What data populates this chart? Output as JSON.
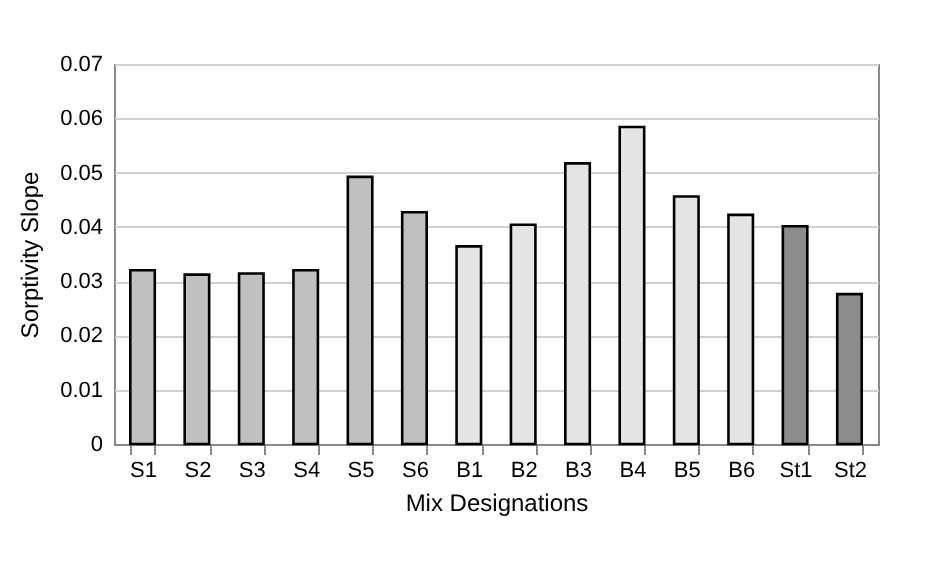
{
  "chart_data": {
    "type": "bar",
    "xlabel": "Mix Designations",
    "ylabel": "Sorptivity Slope",
    "categories": [
      "S1",
      "S2",
      "S3",
      "S4",
      "S5",
      "S6",
      "B1",
      "B2",
      "B3",
      "B4",
      "B5",
      "B6",
      "St1",
      "St2"
    ],
    "values": [
      0.032,
      0.0312,
      0.0314,
      0.032,
      0.0492,
      0.0427,
      0.0364,
      0.0404,
      0.0517,
      0.0584,
      0.0456,
      0.0422,
      0.0401,
      0.0276
    ],
    "colors": [
      "#c0c0c0",
      "#c0c0c0",
      "#c0c0c0",
      "#c0c0c0",
      "#c0c0c0",
      "#c0c0c0",
      "#e4e4e4",
      "#e4e4e4",
      "#e4e4e4",
      "#e4e4e4",
      "#e4e4e4",
      "#e4e4e4",
      "#8c8c8c",
      "#8c8c8c"
    ],
    "ylim": [
      0,
      0.07
    ],
    "yticks": [
      0,
      0.01,
      0.02,
      0.03,
      0.04,
      0.05,
      0.06,
      0.07
    ],
    "grid": "y"
  }
}
